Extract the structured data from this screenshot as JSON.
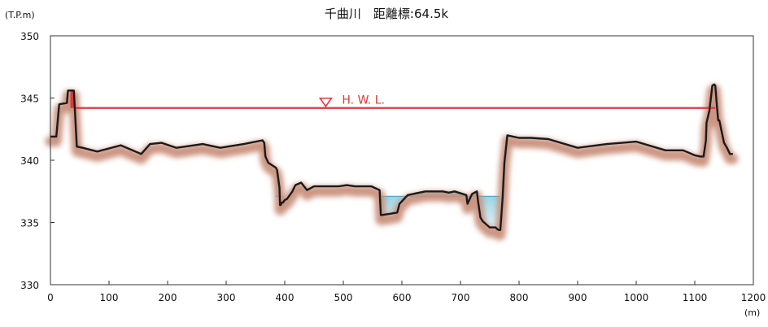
{
  "chart_data": {
    "type": "area",
    "title": "千曲川　距離標:64.5k",
    "y_unit_label": "(T.P.m)",
    "x_unit_label": "(m)",
    "xlim": [
      0,
      1200
    ],
    "ylim": [
      330,
      350
    ],
    "x_ticks": [
      0,
      100,
      200,
      300,
      400,
      500,
      600,
      700,
      800,
      900,
      1000,
      1100,
      1200
    ],
    "y_ticks": [
      330,
      335,
      340,
      345,
      350
    ],
    "x_tick_labels": [
      "0",
      "100",
      "200",
      "300",
      "400",
      "500",
      "600",
      "700",
      "800",
      "900",
      "1000",
      "1100",
      "1200"
    ],
    "y_tick_labels": [
      "330",
      "335",
      "340",
      "345",
      "350"
    ],
    "grid": false,
    "hwl": {
      "label": "H. W. L.",
      "value": 344.2,
      "x_range": [
        42,
        1135
      ],
      "marker_x": 470,
      "color": "#e0383b"
    },
    "water_level": {
      "value": 337.1,
      "x_ranges": [
        [
          384,
          398
        ],
        [
          565,
          768
        ]
      ],
      "color": "#a9dbe8"
    },
    "colors": {
      "ground_line": "#1a1a1a",
      "ground_shadow": "#c9907c",
      "hwl_fill": "#e0383b"
    },
    "series": [
      {
        "x": [
          0,
          10,
          15,
          28,
          30,
          40,
          45,
          55,
          80,
          120,
          155,
          170,
          190,
          215,
          230,
          260,
          290,
          330,
          362,
          365,
          367,
          372,
          385,
          387,
          391,
          392,
          393,
          395,
          397,
          400,
          404,
          413,
          418,
          428,
          438,
          450,
          468,
          478,
          492,
          506,
          520,
          535,
          548,
          562,
          564,
          566,
          580,
          592,
          596,
          600,
          610,
          640,
          670,
          680,
          690,
          710,
          712,
          720,
          728,
          730,
          734,
          738,
          750,
          760,
          762,
          765,
          768,
          772,
          775,
          780,
          800,
          820,
          850,
          900,
          950,
          1000,
          1050,
          1080,
          1090,
          1100,
          1110,
          1115,
          1119,
          1120,
          1125,
          1130,
          1133,
          1135,
          1138,
          1140,
          1142,
          1145,
          1150,
          1155,
          1160,
          1165
        ],
        "y": [
          341.9,
          341.9,
          344.5,
          344.6,
          345.6,
          345.6,
          341.1,
          341.0,
          340.7,
          341.2,
          340.5,
          341.3,
          341.4,
          341.0,
          341.1,
          341.3,
          341.0,
          341.3,
          341.6,
          341.4,
          340.3,
          339.8,
          339.4,
          339.2,
          337.8,
          336.4,
          336.4,
          336.6,
          336.6,
          336.8,
          336.9,
          337.5,
          338.0,
          338.2,
          337.6,
          337.9,
          337.9,
          337.9,
          337.9,
          338.0,
          337.9,
          337.9,
          337.9,
          337.6,
          335.6,
          335.6,
          335.7,
          335.8,
          336.5,
          336.7,
          337.2,
          337.5,
          337.5,
          337.4,
          337.5,
          337.2,
          336.5,
          337.3,
          337.5,
          336.7,
          335.4,
          335.1,
          334.6,
          334.6,
          334.5,
          334.4,
          334.4,
          337.0,
          339.8,
          342.0,
          341.8,
          341.8,
          341.7,
          341.0,
          341.3,
          341.5,
          340.8,
          340.8,
          340.6,
          340.4,
          340.3,
          340.3,
          341.6,
          343.0,
          344.0,
          346.0,
          346.1,
          346.0,
          344.2,
          343.2,
          343.2,
          342.5,
          341.4,
          341.0,
          340.5,
          340.5
        ]
      }
    ]
  }
}
